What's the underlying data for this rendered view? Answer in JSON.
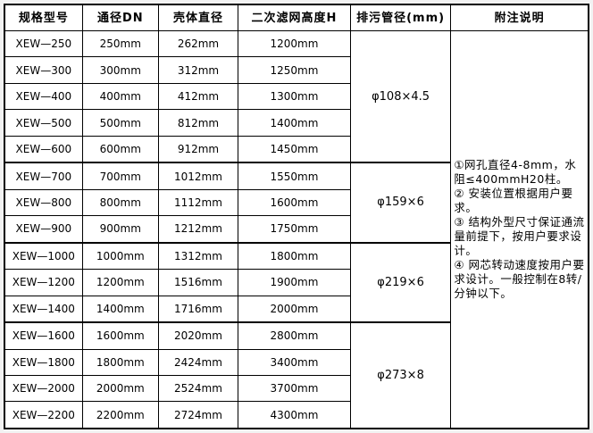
{
  "page": {
    "background_color": "#f2f2f2",
    "table_background": "#ffffff",
    "border_color": "#000000",
    "text_color": "#000000"
  },
  "table": {
    "headers": [
      "规格型号",
      "通径DN",
      "壳体直径",
      "二次滤网高度H",
      "排污管径(mm)",
      "附注说明"
    ],
    "rows": [
      {
        "model": "XEW—250",
        "dn": "250mm",
        "shell": "262mm",
        "height": "1200mm"
      },
      {
        "model": "XEW—300",
        "dn": "300mm",
        "shell": "312mm",
        "height": "1250mm"
      },
      {
        "model": "XEW—400",
        "dn": "400mm",
        "shell": "412mm",
        "height": "1300mm"
      },
      {
        "model": "XEW—500",
        "dn": "500mm",
        "shell": "812mm",
        "height": "1400mm"
      },
      {
        "model": "XEW—600",
        "dn": "600mm",
        "shell": "912mm",
        "height": "1450mm"
      },
      {
        "model": "XEW—700",
        "dn": "700mm",
        "shell": "1012mm",
        "height": "1550mm"
      },
      {
        "model": "XEW—800",
        "dn": "800mm",
        "shell": "1112mm",
        "height": "1600mm"
      },
      {
        "model": "XEW—900",
        "dn": "900mm",
        "shell": "1212mm",
        "height": "1750mm"
      },
      {
        "model": "XEW—1000",
        "dn": "1000mm",
        "shell": "1312mm",
        "height": "1800mm"
      },
      {
        "model": "XEW—1200",
        "dn": "1200mm",
        "shell": "1516mm",
        "height": "1900mm"
      },
      {
        "model": "XEW—1400",
        "dn": "1400mm",
        "shell": "1716mm",
        "height": "2000mm"
      },
      {
        "model": "XEW—1600",
        "dn": "1600mm",
        "shell": "2020mm",
        "height": "2800mm"
      },
      {
        "model": "XEW—1800",
        "dn": "1800mm",
        "shell": "2424mm",
        "height": "3400mm"
      },
      {
        "model": "XEW—2000",
        "dn": "2000mm",
        "shell": "2524mm",
        "height": "3700mm"
      },
      {
        "model": "XEW—2200",
        "dn": "2200mm",
        "shell": "2724mm",
        "height": "4300mm"
      }
    ],
    "drain_groups": [
      {
        "label": "φ108×4.5",
        "rowspan": 5
      },
      {
        "label": "φ159×6",
        "rowspan": 3
      },
      {
        "label": "φ219×6",
        "rowspan": 3
      },
      {
        "label": "φ273×8",
        "rowspan": 4
      }
    ],
    "notes": {
      "lines": [
        "①网孔直径4-8mm，水阻≤400mmH20柱。",
        "② 安装位置根据用户要求。",
        "③ 结构外型尺寸保证通流量前提下，按用户要求设计。",
        "④ 网芯转动速度按用户要求设计。一般控制在8转/分钟以下。"
      ]
    }
  }
}
